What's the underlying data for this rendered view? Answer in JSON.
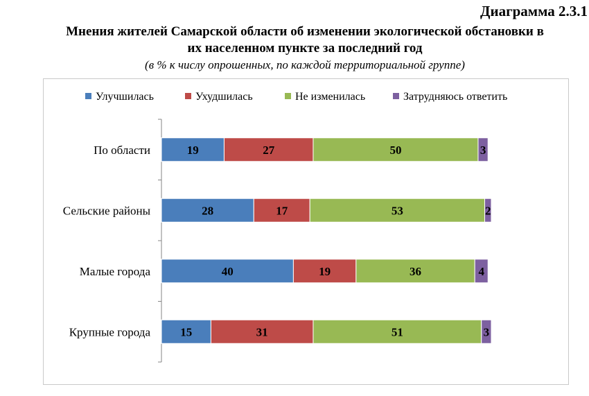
{
  "header": {
    "diagram_number": "Диаграмма 2.3.1",
    "title_line1": "Мнения жителей Самарской области об изменении экологической обстановки в",
    "title_line2": "их населенном пункте за последний год",
    "subtitle": "(в % к числу опрошенных, по каждой территориальной группе)"
  },
  "colors": {
    "improved": "#4a7ebb",
    "worsened": "#be4b48",
    "unchanged": "#98b954",
    "hard_to_say": "#7d60a0"
  },
  "chart_data": {
    "type": "bar",
    "orientation": "horizontal",
    "stacked": true,
    "title": "Мнения жителей Самарской области об изменении экологической обстановки в их населенном пункте за последний год",
    "subtitle": "(в % к числу опрошенных, по каждой территориальной группе)",
    "categories": [
      "По области",
      "Сельские районы",
      "Малые города",
      "Крупные города"
    ],
    "series": [
      {
        "name": "Улучшилась",
        "color": "#4a7ebb",
        "values": [
          19,
          28,
          40,
          15
        ]
      },
      {
        "name": "Ухудшилась",
        "color": "#be4b48",
        "values": [
          27,
          17,
          19,
          31
        ]
      },
      {
        "name": "Не изменилась",
        "color": "#98b954",
        "values": [
          50,
          53,
          36,
          51
        ]
      },
      {
        "name": "Затрудняюсь ответить",
        "color": "#7d60a0",
        "values": [
          3,
          2,
          4,
          3
        ]
      }
    ],
    "xlim": [
      0,
      100
    ],
    "xlabel": "",
    "ylabel": "",
    "grid": false,
    "legend_position": "top"
  }
}
